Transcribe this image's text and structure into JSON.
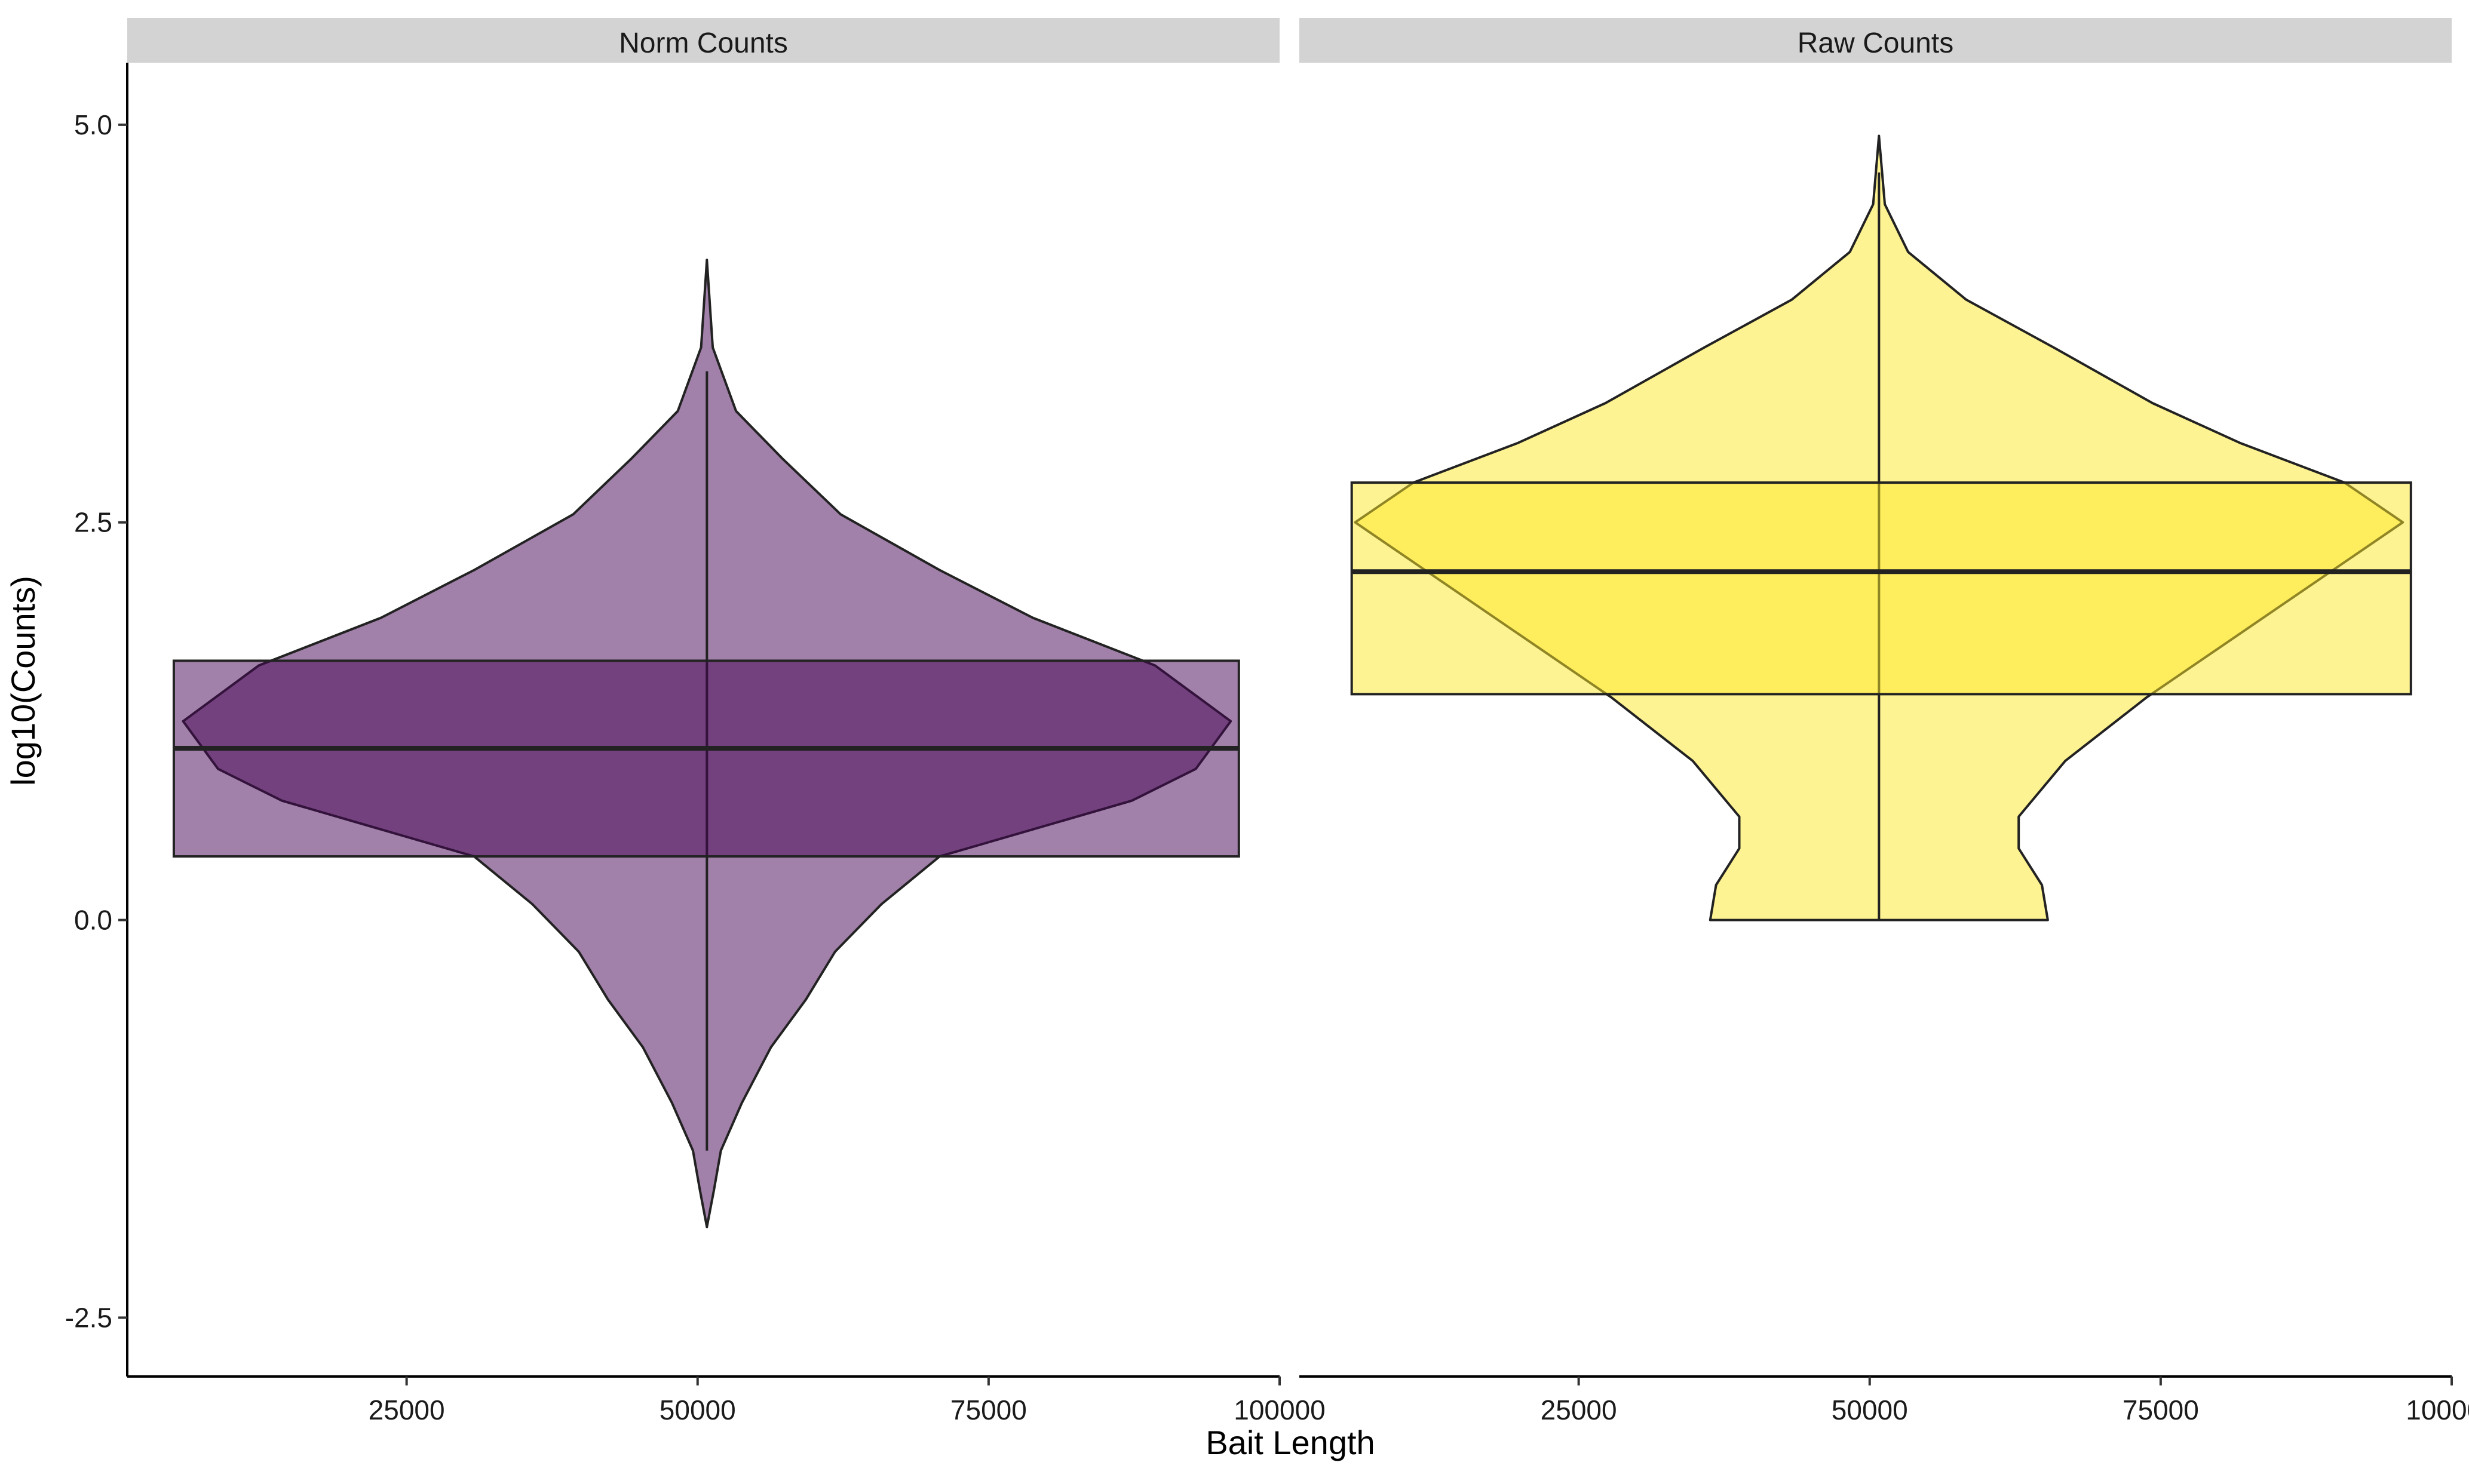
{
  "chart_data": {
    "type": "violin",
    "xlabel": "Bait Length",
    "ylabel": "log10(Counts)",
    "ylim": [
      -2.87,
      5.39
    ],
    "yticks": [
      -2.5,
      0.0,
      2.5,
      5.0
    ],
    "ytick_labels": [
      "-2.5",
      "0.0",
      "2.5",
      "5.0"
    ],
    "xlim": [
      1000,
      100000
    ],
    "xticks": [
      25000,
      50000,
      75000,
      100000
    ],
    "xtick_labels": [
      "25000",
      "50000",
      "75000",
      "100000"
    ],
    "grid": false,
    "legend": "none",
    "panels": [
      {
        "name": "Norm Counts",
        "fill": "#440154",
        "x_center": 50800,
        "violin": {
          "y": [
            4.15,
            3.6,
            3.2,
            2.9,
            2.55,
            2.2,
            1.9,
            1.6,
            1.25,
            0.95,
            0.75,
            0.4,
            0.1,
            -0.2,
            -0.5,
            -0.8,
            -1.15,
            -1.45,
            -1.7,
            -1.93
          ],
          "half_width": [
            0,
            500,
            2500,
            6500,
            11500,
            20000,
            28000,
            38500,
            45000,
            42000,
            36500,
            20000,
            15000,
            11000,
            8500,
            5500,
            3000,
            1200,
            600,
            0
          ]
        },
        "box": {
          "q1": 0.4,
          "median": 1.08,
          "q3": 1.63,
          "whisker_low": -1.45,
          "whisker_high": 3.45,
          "x_min": 5000,
          "x_max": 96500
        }
      },
      {
        "name": "Raw Counts",
        "fill": "#fde725",
        "x_center": 50800,
        "violin": {
          "y": [
            4.93,
            4.5,
            4.2,
            3.9,
            3.6,
            3.25,
            3.0,
            2.75,
            2.5,
            2.2,
            1.8,
            1.4,
            1.0,
            0.65,
            0.45,
            0.22,
            0.0
          ],
          "half_width": [
            0,
            500,
            2500,
            7500,
            15000,
            23500,
            31000,
            40000,
            45000,
            39000,
            31000,
            23000,
            16000,
            12000,
            12000,
            14000,
            14500
          ]
        },
        "box": {
          "q1": 1.42,
          "median": 2.19,
          "q3": 2.75,
          "whisker_low": 0.0,
          "whisker_high": 4.7,
          "x_min": 5500,
          "x_max": 96500
        }
      }
    ]
  }
}
